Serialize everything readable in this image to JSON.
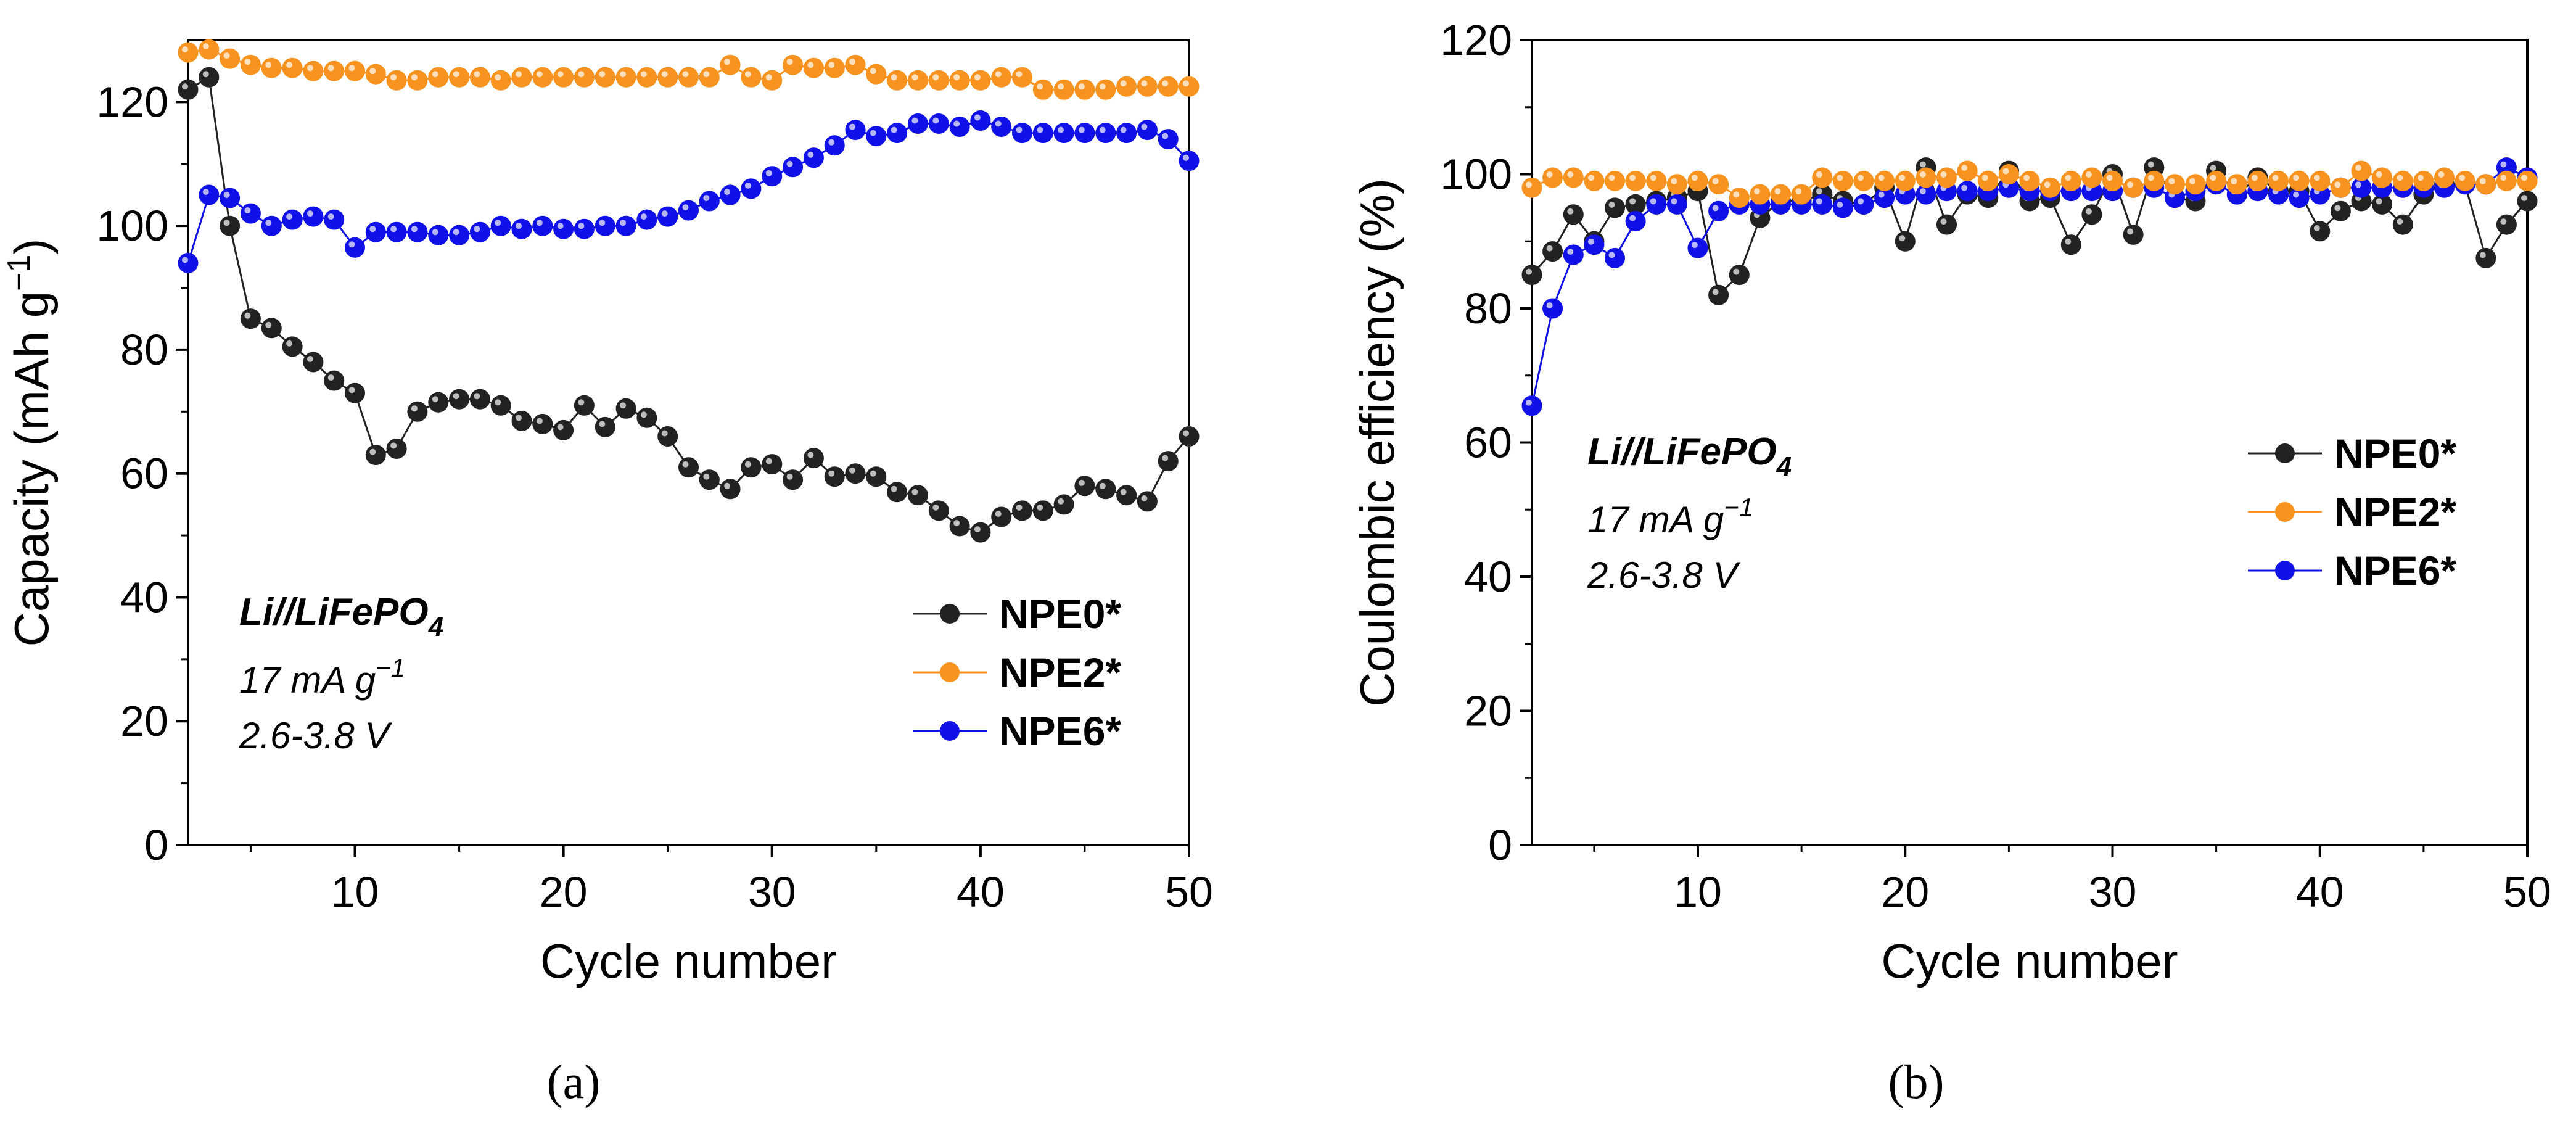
{
  "series_colors": {
    "NPE0*": "#222222",
    "NPE2*": "#f7931e",
    "NPE6*": "#1010e8"
  },
  "chart_data": [
    {
      "type": "line",
      "panel_label": "(a)",
      "xlabel": "Cycle number",
      "ylabel_main": "Capacity (mAh g",
      "ylabel_sup": "−1",
      "ylabel_end": ")",
      "xlim": [
        2,
        50
      ],
      "ylim": [
        0,
        130
      ],
      "xticks": [
        10,
        20,
        30,
        40,
        50
      ],
      "yticks": [
        0,
        20,
        40,
        60,
        80,
        100,
        120
      ],
      "annotation": {
        "title": "Li//LiFePO",
        "title_sub": "4",
        "line1_main": "17 mA g",
        "line1_sup": "−1",
        "line2": "2.6-3.8 V"
      },
      "x": [
        2,
        3,
        4,
        5,
        6,
        7,
        8,
        9,
        10,
        11,
        12,
        13,
        14,
        15,
        16,
        17,
        18,
        19,
        20,
        21,
        22,
        23,
        24,
        25,
        26,
        27,
        28,
        29,
        30,
        31,
        32,
        33,
        34,
        35,
        36,
        37,
        38,
        39,
        40,
        41,
        42,
        43,
        44,
        45,
        46,
        47,
        48,
        49,
        50
      ],
      "series": [
        {
          "name": "NPE0*",
          "values": [
            122,
            124,
            100,
            85,
            83.5,
            80.5,
            78,
            75,
            73,
            63,
            64,
            70,
            71.5,
            72,
            72,
            71,
            68.5,
            68,
            67,
            71,
            67.5,
            70.5,
            69,
            66,
            61,
            59,
            57.5,
            61,
            61.5,
            59,
            62.5,
            59.5,
            60,
            59.5,
            57,
            56.5,
            54,
            51.5,
            50.5,
            53,
            54,
            54,
            55,
            58,
            57.5,
            56.5,
            55.5,
            62,
            66
          ]
        },
        {
          "name": "NPE2*",
          "values": [
            128,
            128.5,
            127,
            126,
            125.5,
            125.5,
            125,
            125,
            125,
            124.5,
            123.5,
            123.5,
            124,
            124,
            124,
            123.5,
            124,
            124,
            124,
            124,
            124,
            124,
            124,
            124,
            124,
            124,
            126,
            124,
            123.5,
            126,
            125.5,
            125.5,
            126,
            124.5,
            123.5,
            123.5,
            123.5,
            123.5,
            123.5,
            124,
            124,
            122,
            122,
            122,
            122,
            122.5,
            122.5,
            122.5,
            122.5
          ]
        },
        {
          "name": "NPE6*",
          "values": [
            94,
            105,
            104.5,
            102,
            100,
            101,
            101.5,
            101,
            96.5,
            99,
            99,
            99,
            98.5,
            98.5,
            99,
            100,
            99.5,
            100,
            99.5,
            99.5,
            100,
            100,
            101,
            101.5,
            102.5,
            104,
            105,
            106,
            108,
            109.5,
            111,
            113,
            115.5,
            114.5,
            115,
            116.5,
            116.5,
            116,
            117,
            116,
            115,
            115,
            115,
            115,
            115,
            115,
            115.5,
            114,
            110.5
          ]
        }
      ]
    },
    {
      "type": "line",
      "panel_label": "(b)",
      "xlabel": "Cycle number",
      "ylabel_main": "Coulombic efficiency (%)",
      "xlim": [
        2,
        50
      ],
      "ylim": [
        0,
        120
      ],
      "xticks": [
        10,
        20,
        30,
        40,
        50
      ],
      "yticks": [
        0,
        20,
        40,
        60,
        80,
        100,
        120
      ],
      "annotation": {
        "title": "Li//LiFePO",
        "title_sub": "4",
        "line1_main": "17 mA g",
        "line1_sup": "−1",
        "line2": "2.6-3.8 V"
      },
      "x": [
        2,
        3,
        4,
        5,
        6,
        7,
        8,
        9,
        10,
        11,
        12,
        13,
        14,
        15,
        16,
        17,
        18,
        19,
        20,
        21,
        22,
        23,
        24,
        25,
        26,
        27,
        28,
        29,
        30,
        31,
        32,
        33,
        34,
        35,
        36,
        37,
        38,
        39,
        40,
        41,
        42,
        43,
        44,
        45,
        46,
        47,
        48,
        49,
        50
      ],
      "series": [
        {
          "name": "NPE0*",
          "values": [
            85,
            88.5,
            94,
            90,
            95,
            95.5,
            96,
            96.5,
            97.5,
            82,
            85,
            93.5,
            96,
            96,
            97,
            96,
            95.5,
            98,
            90,
            101,
            92.5,
            97,
            96.5,
            100.5,
            96,
            96.5,
            89.5,
            94,
            100,
            91,
            101,
            96.5,
            96,
            100.5,
            97,
            99.5,
            97.5,
            97.5,
            91.5,
            94.5,
            96,
            95.5,
            92.5,
            97,
            98.5,
            98.5,
            87.5,
            92.5,
            96
          ]
        },
        {
          "name": "NPE2*",
          "values": [
            98,
            99.5,
            99.5,
            99,
            99,
            99,
            99,
            98.5,
            99,
            98.5,
            96.5,
            97,
            97,
            97,
            99.5,
            99,
            99,
            99,
            99,
            99.5,
            99.5,
            100.5,
            99,
            100,
            99,
            98,
            99,
            99.5,
            99,
            98,
            99,
            98.5,
            98.5,
            99,
            98.5,
            99,
            99,
            99,
            99,
            98,
            100.5,
            99.5,
            99,
            99,
            99.5,
            99,
            98.5,
            99,
            99
          ]
        },
        {
          "name": "NPE6*",
          "values": [
            65.5,
            80,
            88,
            89.5,
            87.5,
            93,
            95.5,
            95.5,
            89,
            94.5,
            95.5,
            95.5,
            95.5,
            95.5,
            95.5,
            95,
            95.5,
            96.5,
            97,
            97,
            97.5,
            97.5,
            97.5,
            98,
            97.5,
            97.5,
            97.5,
            97.5,
            97.5,
            98,
            98,
            96.5,
            97.5,
            98.5,
            97,
            97.5,
            97,
            96.5,
            97,
            98,
            98,
            98,
            98,
            98,
            98,
            98.5,
            98.5,
            101,
            99.5
          ]
        }
      ]
    }
  ]
}
